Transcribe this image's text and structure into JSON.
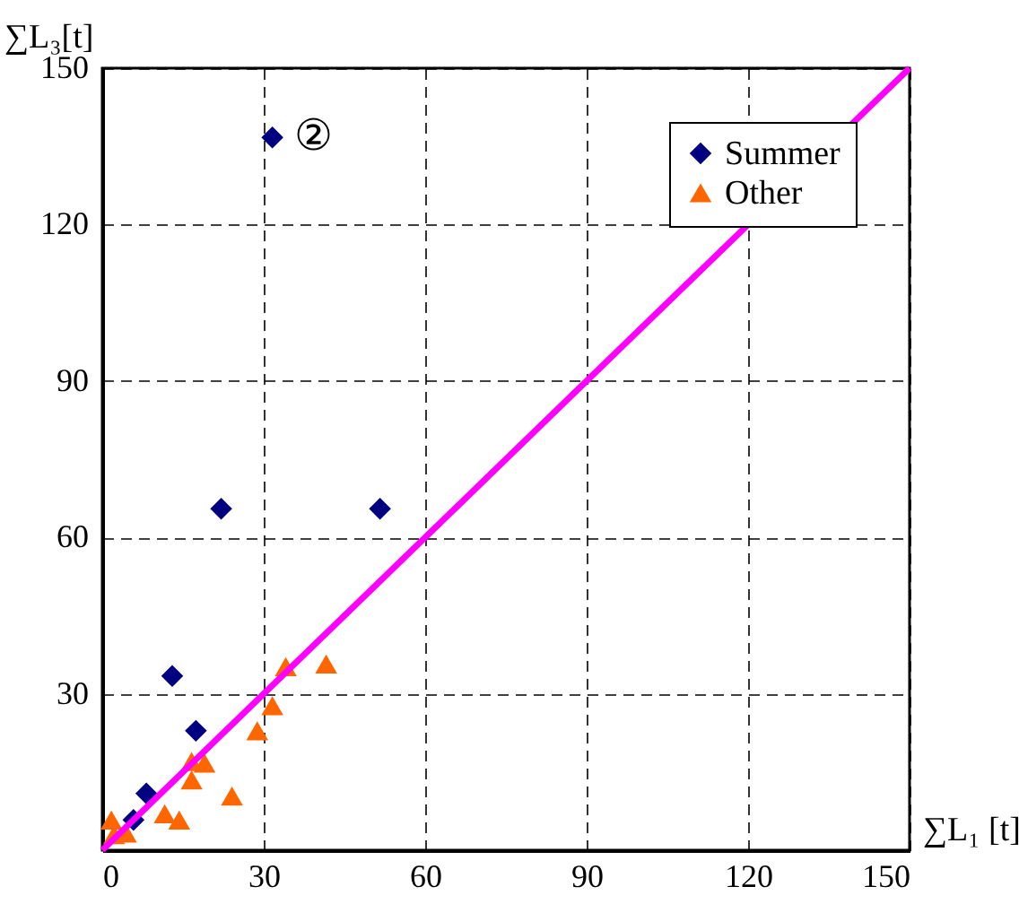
{
  "chart_data": {
    "type": "scatter",
    "xlabel": "∑L₁ [t]",
    "ylabel": "∑L₃[t]",
    "xlim": [
      0,
      150
    ],
    "xticks": [
      0,
      30,
      60,
      90,
      120,
      150
    ],
    "ylim": [
      0,
      150
    ],
    "yticks": [
      30,
      60,
      90,
      120,
      150
    ],
    "grid": true,
    "legend": "top right",
    "annotations": [
      {
        "text": "②",
        "x": 31.6,
        "y": 136.7
      }
    ],
    "series": [
      {
        "name": "Summer",
        "color": "#000080",
        "marker": "diamond",
        "x": [
          31.6,
          22.1,
          51.6,
          13,
          17.4,
          8.2,
          5.8
        ],
        "values": [
          136.7,
          65.5,
          65.5,
          33.4,
          22.9,
          10.9,
          5.8
        ]
      },
      {
        "name": "Other",
        "color": "#ff6600",
        "marker": "triangle",
        "x": [
          34.1,
          41.6,
          31.6,
          28.8,
          19,
          16.6,
          16.6,
          24.1,
          11.6,
          14.3,
          1.7,
          4.4,
          2.2
        ],
        "values": [
          35.2,
          35.7,
          27.7,
          22.9,
          16.7,
          17,
          13.5,
          10.4,
          7,
          5.8,
          5.8,
          3.3,
          3
        ]
      },
      {
        "type": "line",
        "color": "#ff00ff",
        "x": [
          0,
          150
        ],
        "values": [
          0,
          150
        ]
      }
    ]
  }
}
